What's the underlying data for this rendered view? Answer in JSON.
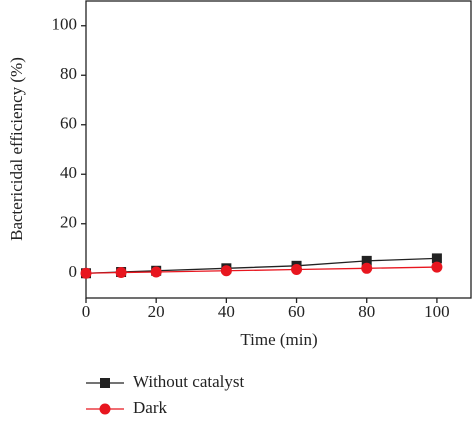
{
  "chart_data": {
    "type": "line",
    "x_label": "Time (min)",
    "y_label": "Bactericidal efficiency (%)",
    "x": [
      0,
      10,
      20,
      40,
      60,
      80,
      100
    ],
    "series": [
      {
        "name": "Without catalyst",
        "color": "#222222",
        "marker": "square",
        "values": [
          0,
          0.5,
          1,
          2,
          3,
          5,
          6
        ]
      },
      {
        "name": "Dark",
        "color": "#e8161f",
        "marker": "circle",
        "values": [
          0,
          0.3,
          0.5,
          1,
          1.5,
          2,
          2.5
        ]
      }
    ],
    "xlim": [
      0,
      110
    ],
    "xticks": [
      0,
      20,
      40,
      60,
      80,
      100
    ],
    "ylim": [
      -10,
      110
    ],
    "yticks": [
      0,
      20,
      40,
      60,
      80,
      100
    ],
    "grid": false
  }
}
